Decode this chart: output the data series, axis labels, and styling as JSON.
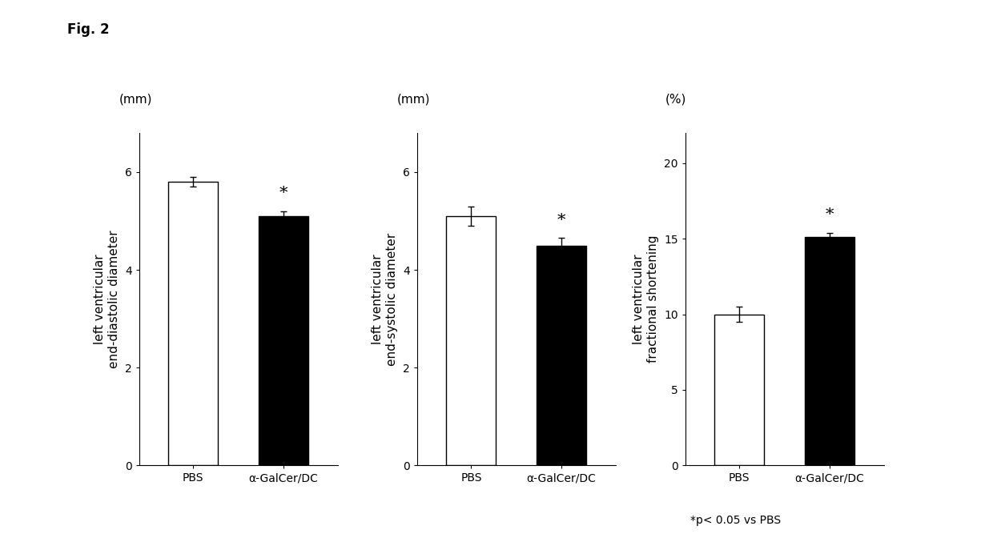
{
  "fig_label": "Fig. 2",
  "charts": [
    {
      "unit_label": "(mm)",
      "ylabel2": "left ventricular\nend-diastolic diameter",
      "yticks": [
        0,
        2,
        4,
        6
      ],
      "ylim": [
        0,
        6.8
      ],
      "categories": [
        "PBS",
        "α-GalCer/DC"
      ],
      "values": [
        5.8,
        5.1
      ],
      "errors": [
        0.1,
        0.1
      ],
      "bar_colors": [
        "white",
        "black"
      ],
      "bar_edgecolor": "black",
      "significance": [
        false,
        true
      ]
    },
    {
      "unit_label": "(mm)",
      "ylabel2": "left ventricular\nend-systolic diameter",
      "yticks": [
        0,
        2,
        4,
        6
      ],
      "ylim": [
        0,
        6.8
      ],
      "categories": [
        "PBS",
        "α-GalCer/DC"
      ],
      "values": [
        5.1,
        4.5
      ],
      "errors": [
        0.2,
        0.15
      ],
      "bar_colors": [
        "white",
        "black"
      ],
      "bar_edgecolor": "black",
      "significance": [
        false,
        true
      ]
    },
    {
      "unit_label": "(%)",
      "ylabel2": "left ventricular\nfractional shortening",
      "yticks": [
        0,
        5,
        10,
        15,
        20
      ],
      "ylim": [
        0,
        22
      ],
      "categories": [
        "PBS",
        "α-GalCer/DC"
      ],
      "values": [
        10.0,
        15.1
      ],
      "errors": [
        0.5,
        0.3
      ],
      "bar_colors": [
        "white",
        "black"
      ],
      "bar_edgecolor": "black",
      "significance": [
        false,
        true
      ]
    }
  ],
  "footnote": "*p< 0.05 vs PBS",
  "background_color": "white",
  "fontsize": 10,
  "label_fontsize": 11,
  "title_fontsize": 12
}
